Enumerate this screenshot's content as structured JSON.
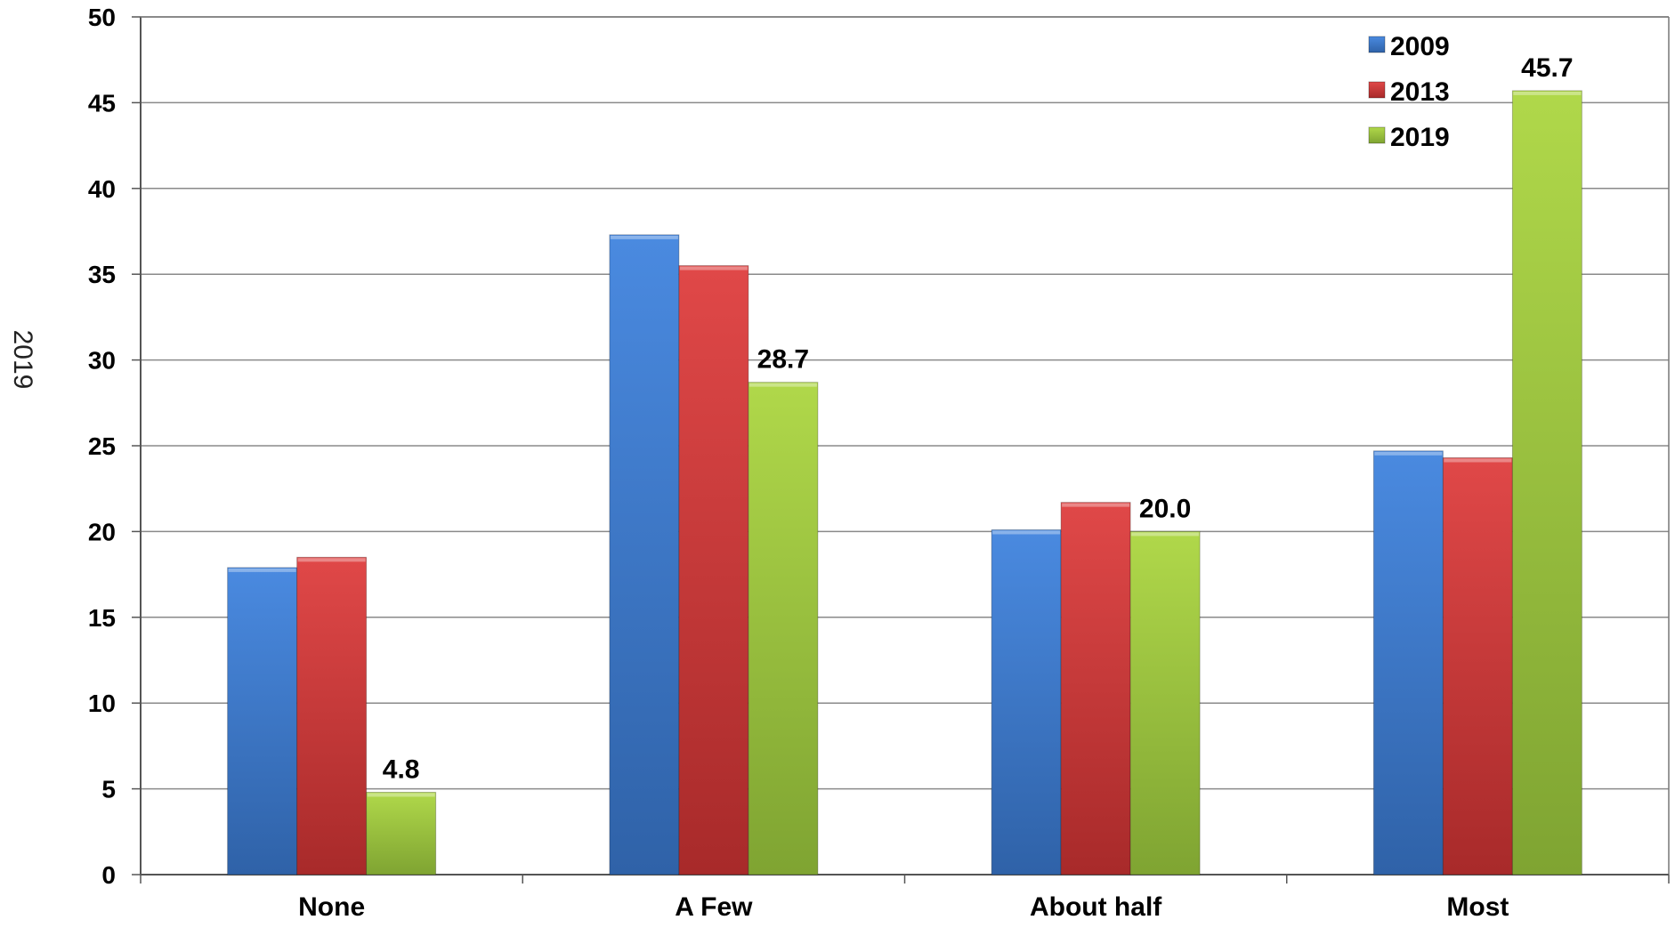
{
  "chart_data": {
    "type": "bar",
    "ylabel": "2019",
    "xlabel": "",
    "title": "",
    "ylim": [
      0,
      50
    ],
    "yticks": [
      0,
      5,
      10,
      15,
      20,
      25,
      30,
      35,
      40,
      45,
      50
    ],
    "categories": [
      "None",
      "A Few",
      "About half",
      "Most"
    ],
    "series": [
      {
        "name": "2009",
        "values": [
          17.9,
          37.3,
          20.1,
          24.7
        ],
        "color": "#3a78c8"
      },
      {
        "name": "2013",
        "values": [
          18.5,
          35.5,
          21.7,
          24.3
        ],
        "color": "#d23c3c"
      },
      {
        "name": "2019",
        "values": [
          4.8,
          28.7,
          20.0,
          45.7
        ],
        "color": "#9fc93a"
      }
    ],
    "data_labels": {
      "series": "2019",
      "text": [
        "4.8",
        "28.7",
        "20.0",
        "45.7"
      ]
    },
    "grid": true,
    "legend_position": "top-right"
  }
}
